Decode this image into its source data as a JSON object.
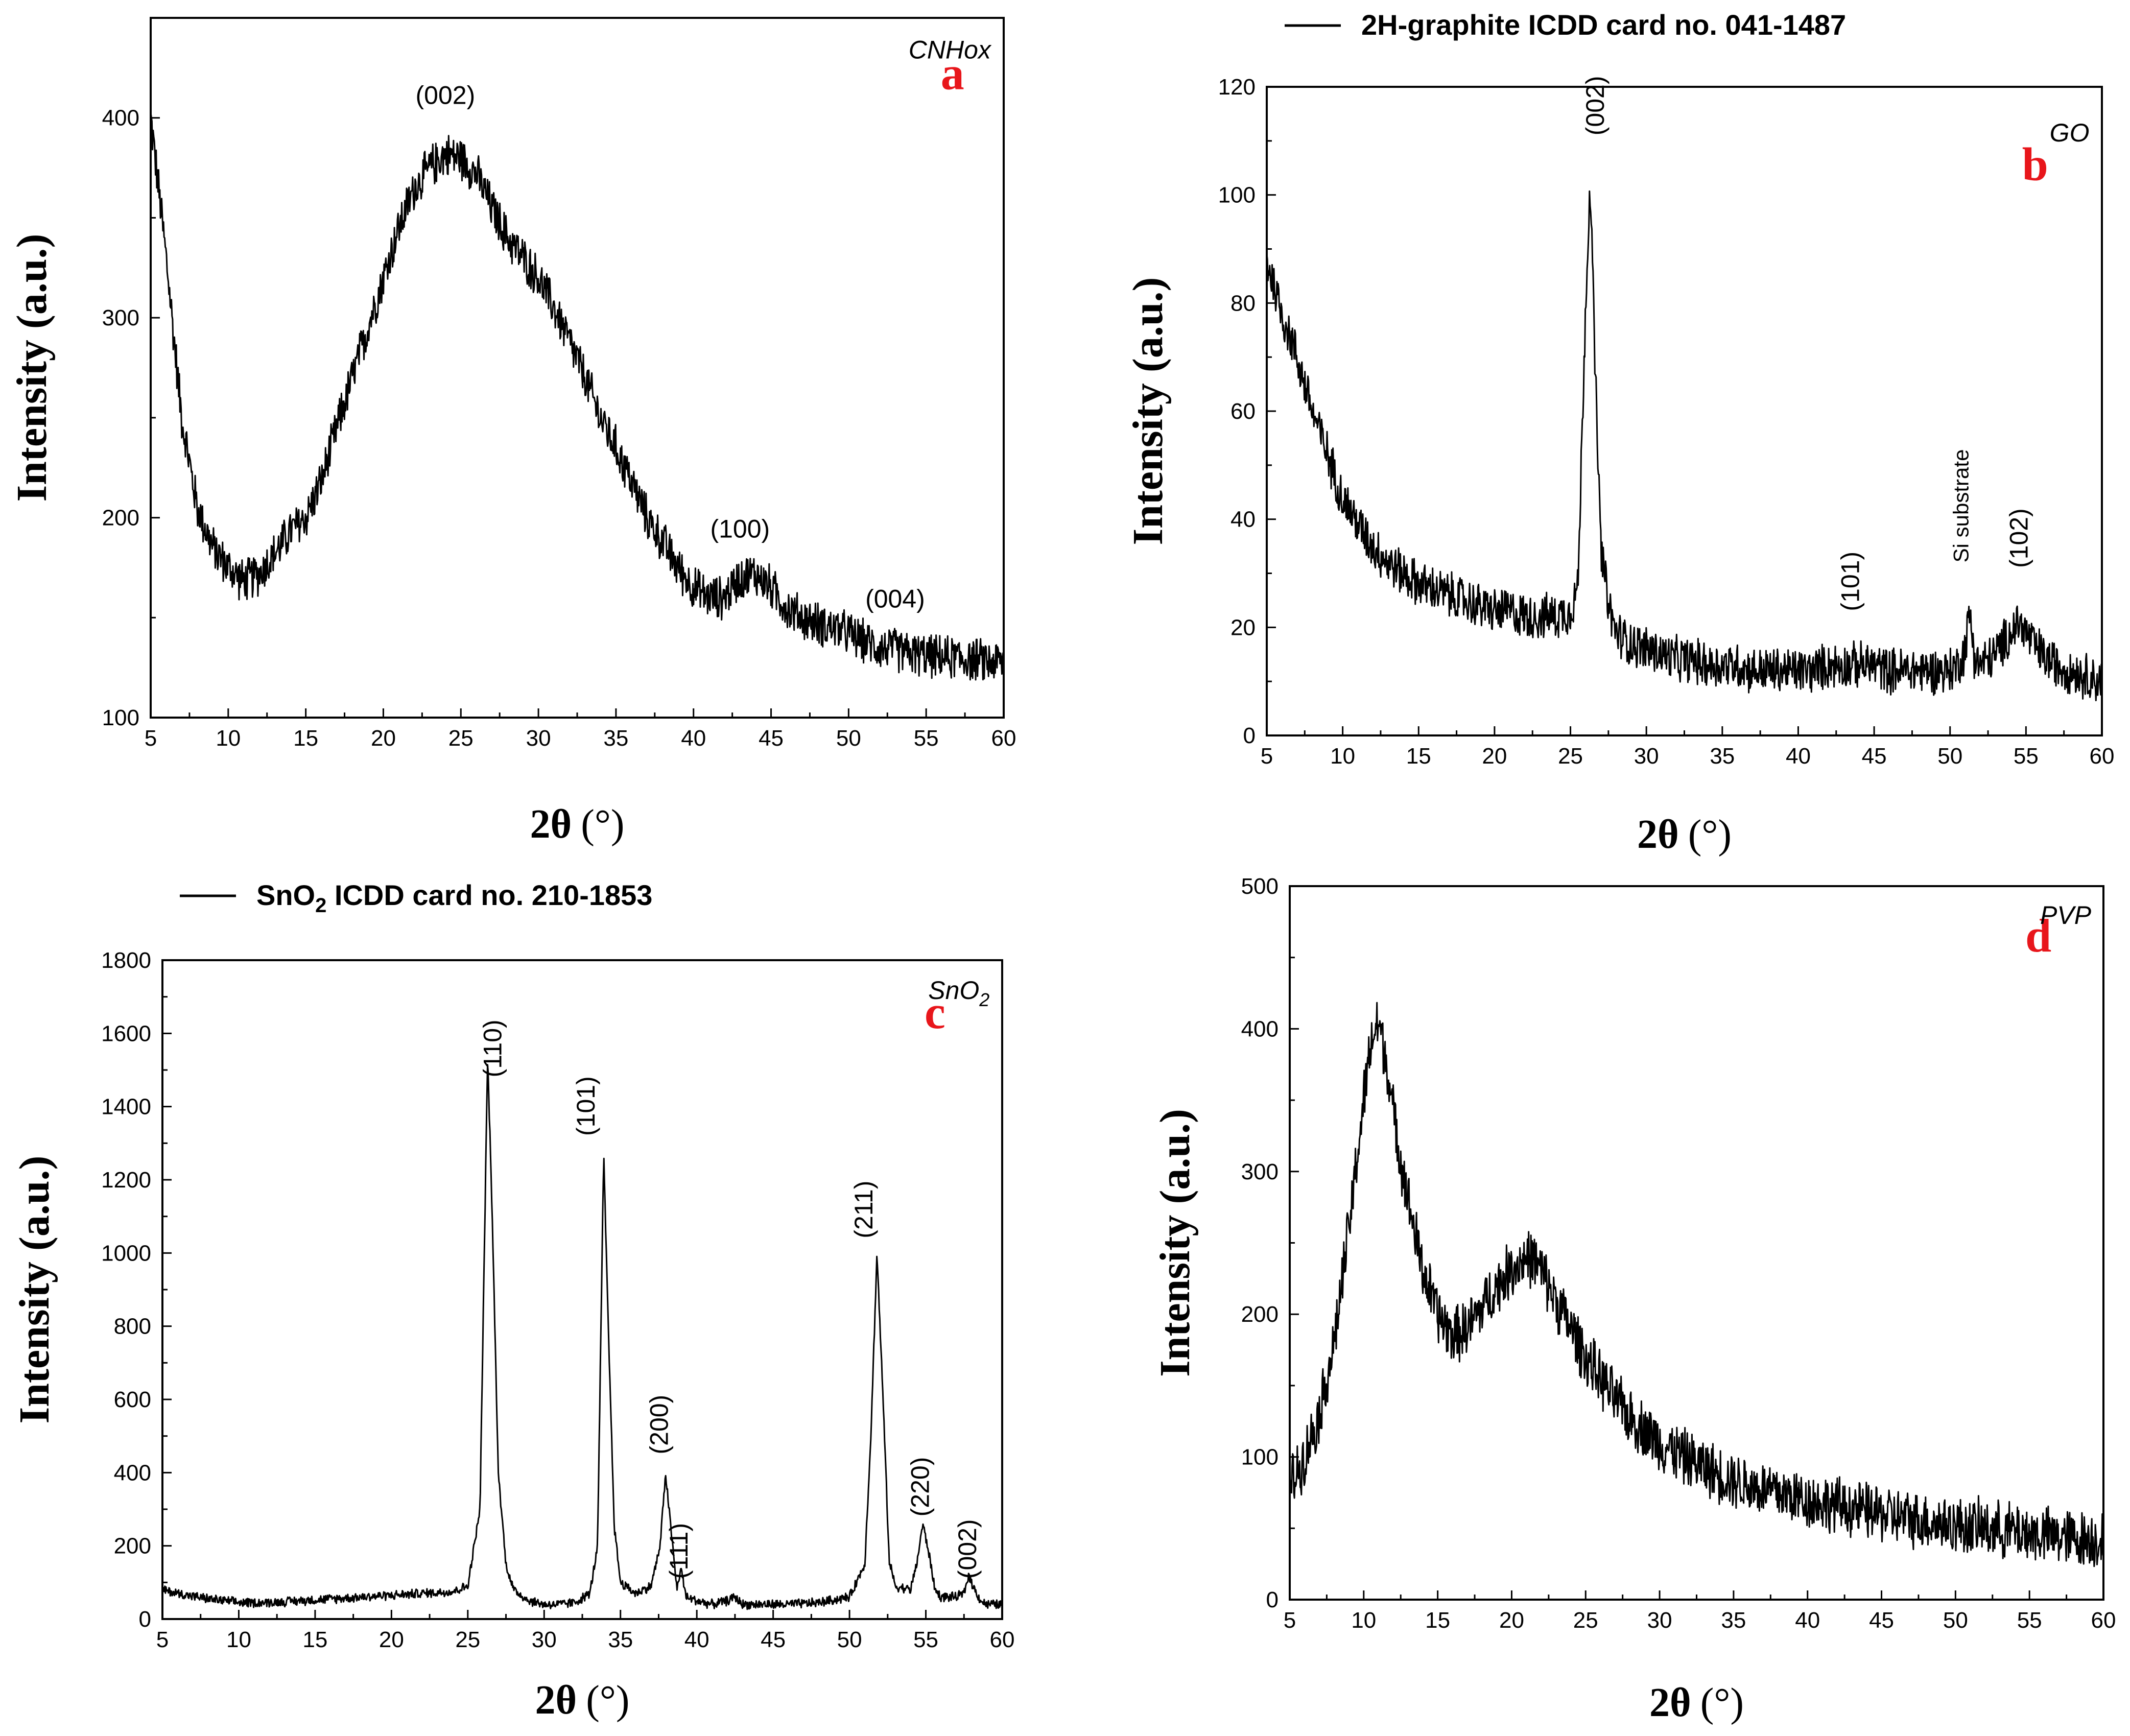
{
  "chart_data": [
    {
      "id": "a",
      "type": "line",
      "panel_letter": "a",
      "sample_label": "CNHox",
      "legend": "",
      "xlabel_theta": "2θ",
      "xlabel_unit": "(°)",
      "ylabel": "Intensity (a.u.)",
      "xlim": [
        5,
        60
      ],
      "ylim": [
        100,
        450
      ],
      "xticks": [
        5,
        10,
        15,
        20,
        25,
        30,
        35,
        40,
        45,
        50,
        55,
        60
      ],
      "yticks": [
        100,
        200,
        300,
        400
      ],
      "series": [
        {
          "name": "CNHox",
          "x": [
            5,
            6,
            7,
            8,
            9,
            10,
            11,
            12,
            13,
            14,
            15,
            16,
            17,
            18,
            19,
            20,
            21,
            22,
            23,
            24,
            25,
            26,
            27,
            28,
            29,
            30,
            31,
            32,
            33,
            34,
            35,
            36,
            37,
            38,
            39,
            40,
            41,
            42,
            43,
            44,
            45,
            46,
            47,
            48,
            49,
            50,
            51,
            52,
            53,
            54,
            55,
            56,
            57,
            58,
            59,
            60
          ],
          "y": [
            400,
            330,
            250,
            205,
            185,
            175,
            168,
            172,
            182,
            193,
            200,
            218,
            245,
            270,
            295,
            320,
            345,
            365,
            375,
            382,
            380,
            372,
            355,
            340,
            330,
            320,
            305,
            288,
            270,
            250,
            235,
            218,
            200,
            188,
            175,
            165,
            160,
            160,
            170,
            172,
            165,
            155,
            150,
            147,
            145,
            142,
            138,
            135,
            134,
            132,
            131,
            130,
            130,
            129,
            128,
            128
          ]
        }
      ],
      "annotations": [
        {
          "text": "(002)",
          "x": 24,
          "y": 407
        },
        {
          "text": "(100)",
          "x": 43,
          "y": 190
        },
        {
          "text": "(004)",
          "x": 53,
          "y": 155
        }
      ]
    },
    {
      "id": "b",
      "type": "line",
      "panel_letter": "b",
      "sample_label": "GO",
      "legend": "2H-graphite ICDD card no. 041-1487",
      "xlabel_theta": "2θ",
      "xlabel_unit": "(°)",
      "ylabel": "Intensity (a.u.)",
      "xlim": [
        5,
        60
      ],
      "ylim": [
        0,
        120
      ],
      "xticks": [
        5,
        10,
        15,
        20,
        25,
        30,
        35,
        40,
        45,
        50,
        55,
        60
      ],
      "yticks": [
        0,
        20,
        40,
        60,
        80,
        100,
        120
      ],
      "series": [
        {
          "name": "GO",
          "x": [
            5,
            6,
            7,
            8,
            9,
            10,
            11,
            12,
            13,
            14,
            15,
            16,
            17,
            18,
            19,
            20,
            21,
            22,
            23,
            24,
            25,
            25.5,
            26,
            26.3,
            26.6,
            27,
            27.5,
            28,
            29,
            30,
            31,
            32,
            33,
            34,
            35,
            36,
            37,
            38,
            39,
            40,
            41,
            42,
            43,
            44,
            45,
            46,
            47,
            48,
            49,
            50,
            50.5,
            51,
            51.3,
            51.6,
            52,
            53,
            54,
            54.5,
            55,
            56,
            57,
            58,
            59,
            60
          ],
          "y": [
            88,
            78,
            70,
            60,
            52,
            44,
            39,
            35,
            32,
            30,
            28,
            27,
            26,
            25,
            24,
            23,
            23,
            22,
            22,
            22,
            23,
            28,
            80,
            103,
            70,
            35,
            24,
            19,
            17,
            16,
            15,
            14,
            14,
            13,
            13,
            13,
            12,
            12,
            12,
            12,
            12,
            13,
            13,
            13,
            13,
            12,
            12,
            12,
            12,
            12,
            13,
            16,
            23,
            15,
            13,
            15,
            19,
            21,
            19,
            15,
            13,
            12,
            11,
            10
          ]
        }
      ],
      "annotations": [
        {
          "text": "(002)",
          "x": 27.2,
          "y": 111,
          "rotate": true
        },
        {
          "text": "(101)",
          "x": 44,
          "y": 23,
          "rotate": true
        },
        {
          "text": "Si substrate",
          "x": 51.2,
          "y": 32,
          "rotate": true,
          "small": true
        },
        {
          "text": "(102)",
          "x": 55.1,
          "y": 31,
          "rotate": true
        }
      ]
    },
    {
      "id": "c",
      "type": "line",
      "panel_letter": "c",
      "sample_label": "SnO",
      "sample_label_sub": "2",
      "legend": "SnO",
      "legend_sub": "2",
      "legend_tail": " ICDD card no. 210-1853",
      "xlabel_theta": "2θ",
      "xlabel_unit": "(°)",
      "ylabel": "Intensity (a.u.)",
      "xlim": [
        5,
        60
      ],
      "ylim": [
        0,
        1800
      ],
      "xticks": [
        5,
        10,
        15,
        20,
        25,
        30,
        35,
        40,
        45,
        50,
        55,
        60
      ],
      "yticks": [
        0,
        200,
        400,
        600,
        800,
        1000,
        1200,
        1400,
        1600,
        1800
      ],
      "series": [
        {
          "name": "SnO2",
          "x": [
            5,
            6,
            8,
            10,
            12,
            14,
            16,
            18,
            20,
            22,
            24,
            25,
            25.8,
            26.3,
            26.6,
            27,
            27.5,
            28,
            29,
            30,
            31,
            32,
            33,
            33.5,
            33.9,
            34.2,
            34.6,
            35,
            36,
            37,
            37.6,
            37.95,
            38.3,
            38.7,
            38.95,
            39.3,
            40,
            41,
            42,
            42.5,
            43,
            44,
            46,
            48,
            50,
            51,
            51.4,
            51.8,
            52.2,
            52.6,
            53,
            54,
            54.4,
            54.8,
            55.2,
            55.6,
            56,
            57,
            57.5,
            57.8,
            58.2,
            58.6,
            59,
            60
          ],
          "y": [
            80,
            70,
            55,
            45,
            45,
            50,
            55,
            60,
            65,
            70,
            75,
            90,
            300,
            1540,
            1100,
            400,
            150,
            80,
            50,
            40,
            40,
            45,
            70,
            200,
            1270,
            800,
            250,
            100,
            70,
            90,
            200,
            400,
            250,
            80,
            140,
            60,
            50,
            40,
            50,
            60,
            40,
            40,
            40,
            45,
            60,
            150,
            500,
            1000,
            600,
            160,
            90,
            80,
            150,
            260,
            180,
            80,
            60,
            60,
            70,
            120,
            80,
            50,
            40,
            40
          ]
        }
      ],
      "annotations": [
        {
          "text": "(110)",
          "x": 27.2,
          "y": 1480,
          "rotate": true
        },
        {
          "text": "(101)",
          "x": 33.3,
          "y": 1320,
          "rotate": true
        },
        {
          "text": "(200)",
          "x": 38.1,
          "y": 450,
          "rotate": true
        },
        {
          "text": "(111)",
          "x": 39.4,
          "y": 110,
          "rotate": true
        },
        {
          "text": "(211)",
          "x": 51.5,
          "y": 1040,
          "rotate": true
        },
        {
          "text": "(220)",
          "x": 55.2,
          "y": 280,
          "rotate": true
        },
        {
          "text": "(002)",
          "x": 58.3,
          "y": 110,
          "rotate": true
        }
      ]
    },
    {
      "id": "d",
      "type": "line",
      "panel_letter": "d",
      "sample_label": "PVP",
      "legend": "",
      "xlabel_theta": "2θ",
      "xlabel_unit": "(°)",
      "ylabel": "Intensity (a.u.)",
      "xlim": [
        5,
        60
      ],
      "ylim": [
        0,
        500
      ],
      "xticks": [
        5,
        10,
        15,
        20,
        25,
        30,
        35,
        40,
        45,
        50,
        55,
        60
      ],
      "yticks": [
        0,
        100,
        200,
        300,
        400,
        500
      ],
      "series": [
        {
          "name": "PVP",
          "x": [
            5,
            6,
            7,
            8,
            9,
            10,
            10.5,
            11,
            11.5,
            12,
            13,
            14,
            15,
            16,
            17,
            18,
            19,
            20,
            21,
            21.5,
            22,
            23,
            24,
            25,
            26,
            27,
            28,
            30,
            32,
            34,
            36,
            38,
            40,
            42,
            44,
            46,
            48,
            50,
            52,
            54,
            56,
            58,
            60
          ],
          "y": [
            80,
            100,
            130,
            180,
            260,
            350,
            390,
            405,
            380,
            340,
            280,
            230,
            200,
            185,
            190,
            205,
            220,
            232,
            240,
            238,
            230,
            210,
            190,
            170,
            155,
            140,
            128,
            110,
            98,
            88,
            80,
            75,
            70,
            66,
            62,
            58,
            55,
            52,
            50,
            48,
            45,
            43,
            42
          ]
        }
      ],
      "annotations": []
    }
  ]
}
